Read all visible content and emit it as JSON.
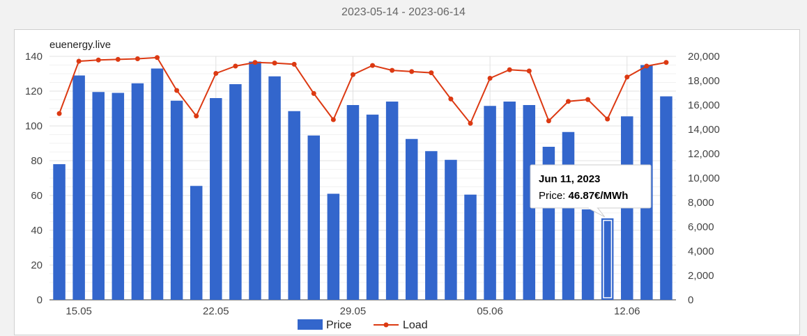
{
  "header": {
    "date_range": "2023-05-14 - 2023-06-14"
  },
  "colors": {
    "price": "#3366cc",
    "load": "#dc3912",
    "grid": "#e0e0e0",
    "axis_text": "#444444"
  },
  "chart_data": {
    "type": "bar",
    "title": "euenergy.live",
    "x": [
      "2023-05-14",
      "2023-05-15",
      "2023-05-16",
      "2023-05-17",
      "2023-05-18",
      "2023-05-19",
      "2023-05-20",
      "2023-05-21",
      "2023-05-22",
      "2023-05-23",
      "2023-05-24",
      "2023-05-25",
      "2023-05-26",
      "2023-05-27",
      "2023-05-28",
      "2023-05-29",
      "2023-05-30",
      "2023-05-31",
      "2023-06-01",
      "2023-06-02",
      "2023-06-03",
      "2023-06-04",
      "2023-06-05",
      "2023-06-06",
      "2023-06-07",
      "2023-06-08",
      "2023-06-09",
      "2023-06-10",
      "2023-06-11",
      "2023-06-12",
      "2023-06-13",
      "2023-06-14"
    ],
    "x_tick_labels": [
      {
        "date": "2023-05-15",
        "label": "15.05"
      },
      {
        "date": "2023-05-22",
        "label": "22.05"
      },
      {
        "date": "2023-05-29",
        "label": "29.05"
      },
      {
        "date": "2023-06-05",
        "label": "05.06"
      },
      {
        "date": "2023-06-12",
        "label": "12.06"
      }
    ],
    "series": [
      {
        "name": "Price",
        "type": "bar",
        "axis": "left",
        "values": [
          78,
          129,
          119.5,
          119,
          124.5,
          133,
          114.5,
          65.5,
          116,
          124,
          137,
          128.5,
          108.5,
          94.5,
          61,
          112,
          106.5,
          114,
          92.5,
          85.5,
          80.5,
          60.5,
          111.5,
          114,
          112,
          88,
          96.5,
          52,
          46.87,
          105.5,
          135,
          117
        ]
      },
      {
        "name": "Load",
        "type": "line",
        "axis": "right",
        "values": [
          15300,
          19600,
          19700,
          19750,
          19800,
          19900,
          17200,
          15100,
          18600,
          19200,
          19500,
          19450,
          19350,
          16950,
          14800,
          18500,
          19250,
          18850,
          18750,
          18650,
          16500,
          14500,
          18200,
          18900,
          18800,
          14700,
          16300,
          16450,
          14850,
          18300,
          19200,
          19500
        ]
      }
    ],
    "y_left": {
      "min": 0,
      "max": 140,
      "ticks": [
        "0",
        "20",
        "40",
        "60",
        "80",
        "100",
        "120",
        "140"
      ]
    },
    "y_right": {
      "min": 0,
      "max": 20000,
      "ticks": [
        "0",
        "2,000",
        "4,000",
        "6,000",
        "8,000",
        "10,000",
        "12,000",
        "14,000",
        "16,000",
        "18,000",
        "20,000"
      ]
    },
    "grid": true,
    "legend": {
      "position": "bottom",
      "entries": [
        "Price",
        "Load"
      ]
    },
    "tooltip": {
      "index": 28,
      "title": "Jun 11, 2023",
      "label": "Price:",
      "value": "46.87€/MWh"
    }
  }
}
